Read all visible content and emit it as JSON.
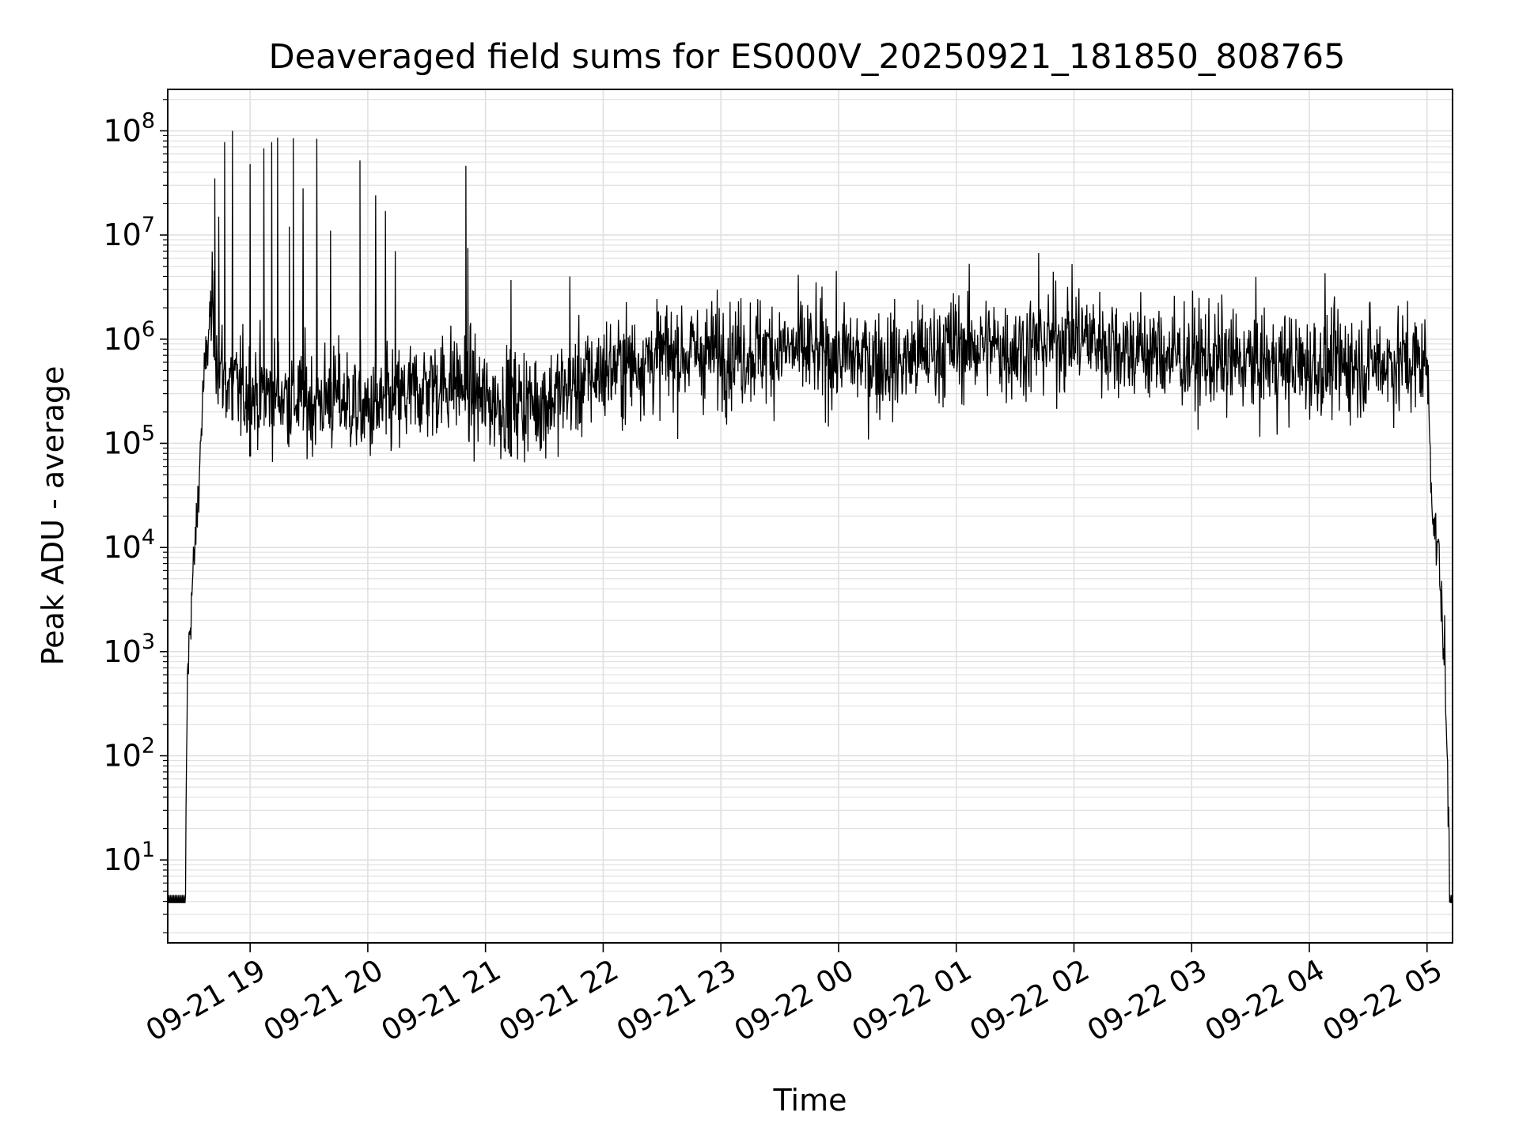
{
  "chart_data": {
    "type": "line",
    "title": "Deaveraged field sums for ES000V_20250921_181850_808765",
    "xlabel": "Time",
    "ylabel": "Peak ADU - average",
    "yscale": "log",
    "ylim": [
      1.6,
      250000000.0
    ],
    "xlim": [
      "2025-09-21 18:18",
      "2025-09-22 05:13"
    ],
    "grid": true,
    "line_color": "#000000",
    "grid_color": "#e0e0e0",
    "x_tick_labels": [
      "09-21 19",
      "09-21 20",
      "09-21 21",
      "09-21 22",
      "09-21 23",
      "09-22 00",
      "09-22 01",
      "09-22 02",
      "09-22 03",
      "09-22 04",
      "09-22 05"
    ],
    "y_tick_labels": [
      {
        "base": "10",
        "exp": "1"
      },
      {
        "base": "10",
        "exp": "2"
      },
      {
        "base": "10",
        "exp": "3"
      },
      {
        "base": "10",
        "exp": "4"
      },
      {
        "base": "10",
        "exp": "5"
      },
      {
        "base": "10",
        "exp": "6"
      },
      {
        "base": "10",
        "exp": "7"
      },
      {
        "base": "10",
        "exp": "8"
      }
    ],
    "series": [
      {
        "x": [
          "2025-09-21 18:18",
          "2025-09-21 18:27",
          "2025-09-21 18:28",
          "2025-09-21 18:30",
          "2025-09-21 18:33",
          "2025-09-21 18:36",
          "2025-09-21 18:40",
          "2025-09-21 18:45",
          "2025-09-21 18:50",
          "2025-09-21 19:00",
          "2025-09-21 19:15",
          "2025-09-21 19:30",
          "2025-09-21 19:45",
          "2025-09-21 20:00",
          "2025-09-21 20:15",
          "2025-09-21 20:30",
          "2025-09-21 20:45",
          "2025-09-21 21:00",
          "2025-09-21 21:30",
          "2025-09-21 22:00",
          "2025-09-21 22:30",
          "2025-09-21 23:00",
          "2025-09-21 23:30",
          "2025-09-22 00:00",
          "2025-09-22 00:30",
          "2025-09-22 01:00",
          "2025-09-22 01:30",
          "2025-09-22 02:00",
          "2025-09-22 02:30",
          "2025-09-22 03:00",
          "2025-09-22 03:30",
          "2025-09-22 04:00",
          "2025-09-22 04:30",
          "2025-09-22 05:00",
          "2025-09-22 05:03",
          "2025-09-22 05:06",
          "2025-09-22 05:09",
          "2025-09-22 05:12"
        ],
        "y": [
          4,
          4,
          500,
          3000,
          20000,
          300000,
          2000000,
          500000,
          350000,
          300000,
          300000,
          250000,
          280000,
          200000,
          250000,
          350000,
          400000,
          250000,
          250000,
          500000,
          700000,
          750000,
          800000,
          700000,
          600000,
          900000,
          800000,
          1100000,
          800000,
          650000,
          600000,
          550000,
          600000,
          600000,
          20000,
          8000,
          800,
          4
        ],
        "noise_sigma_decades": 0.32,
        "spikes": [
          {
            "x": "2025-09-21 18:42",
            "y": 35000000
          },
          {
            "x": "2025-09-21 18:44",
            "y": 15000000
          },
          {
            "x": "2025-09-21 18:47",
            "y": 78000000
          },
          {
            "x": "2025-09-21 18:51",
            "y": 100000000
          },
          {
            "x": "2025-09-21 19:00",
            "y": 48000000
          },
          {
            "x": "2025-09-21 19:07",
            "y": 68000000
          },
          {
            "x": "2025-09-21 19:11",
            "y": 78000000
          },
          {
            "x": "2025-09-21 19:14",
            "y": 86000000
          },
          {
            "x": "2025-09-21 19:22",
            "y": 85000000
          },
          {
            "x": "2025-09-21 19:34",
            "y": 84000000
          },
          {
            "x": "2025-09-21 19:27",
            "y": 28000000
          },
          {
            "x": "2025-09-21 19:20",
            "y": 12000000
          },
          {
            "x": "2025-09-21 19:41",
            "y": 11000000
          },
          {
            "x": "2025-09-21 19:56",
            "y": 52000000
          },
          {
            "x": "2025-09-21 20:04",
            "y": 24000000
          },
          {
            "x": "2025-09-21 20:09",
            "y": 17000000
          },
          {
            "x": "2025-09-21 20:14",
            "y": 7000000
          },
          {
            "x": "2025-09-21 20:50",
            "y": 46000000
          },
          {
            "x": "2025-09-21 20:51",
            "y": 7500000
          },
          {
            "x": "2025-09-21 21:13",
            "y": 3700000
          },
          {
            "x": "2025-09-21 21:43",
            "y": 4000000
          },
          {
            "x": "2025-09-22 01:42",
            "y": 6700000
          },
          {
            "x": "2025-09-22 04:08",
            "y": 4300000
          }
        ]
      }
    ]
  }
}
